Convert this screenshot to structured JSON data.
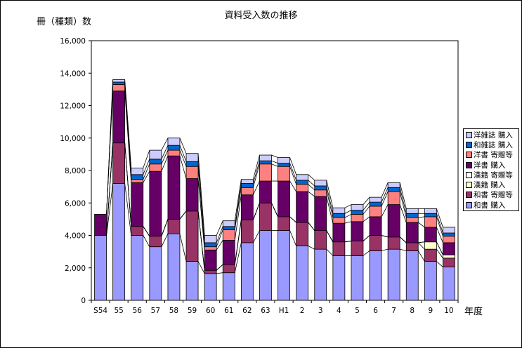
{
  "chart_data": {
    "type": "bar",
    "stacked": true,
    "title": "資料受入数の推移",
    "ylabel": "冊（種類）数",
    "xlabel": "年度",
    "ylim": [
      0,
      16000
    ],
    "yticks": [
      "0",
      "2,000",
      "4,000",
      "6,000",
      "8,000",
      "10,000",
      "12,000",
      "14,000",
      "16,000"
    ],
    "ytick_values": [
      0,
      2000,
      4000,
      6000,
      8000,
      10000,
      12000,
      14000,
      16000
    ],
    "categories": [
      "S54",
      "55",
      "56",
      "57",
      "58",
      "59",
      "60",
      "61",
      "62",
      "63",
      "H1",
      "2",
      "3",
      "4",
      "5",
      "6",
      "7",
      "8",
      "9",
      "10"
    ],
    "series": [
      {
        "name": "和書 購入",
        "color": "#9999ff",
        "values": [
          4000,
          7200,
          4000,
          3300,
          4100,
          2400,
          1650,
          1700,
          3550,
          4300,
          4300,
          3350,
          3150,
          2750,
          2750,
          3050,
          3150,
          3050,
          2400,
          2050
        ]
      },
      {
        "name": "和書 寄贈等",
        "color": "#993366",
        "values": [
          0,
          2500,
          550,
          650,
          900,
          3100,
          200,
          500,
          1400,
          1700,
          850,
          1450,
          1150,
          850,
          900,
          950,
          750,
          500,
          750,
          550
        ]
      },
      {
        "name": "漢籍 購入",
        "color": "#ffffcc",
        "values": [
          0,
          0,
          0,
          0,
          0,
          0,
          0,
          0,
          0,
          0,
          0,
          0,
          0,
          0,
          0,
          0,
          0,
          0,
          450,
          200
        ]
      },
      {
        "name": "漢籍 寄贈等",
        "color": "#ffffff",
        "values": [
          0,
          0,
          0,
          0,
          0,
          0,
          0,
          0,
          0,
          0,
          0,
          0,
          0,
          0,
          0,
          0,
          0,
          0,
          0,
          0
        ]
      },
      {
        "name": "洋書 購入",
        "color": "#660066",
        "values": [
          1300,
          3200,
          2700,
          4000,
          3900,
          2000,
          1250,
          1500,
          1550,
          1350,
          2200,
          1900,
          2100,
          1150,
          1200,
          1150,
          2000,
          1250,
          900,
          750
        ]
      },
      {
        "name": "洋書 寄贈等",
        "color": "#ff8080",
        "values": [
          0,
          400,
          200,
          450,
          350,
          750,
          200,
          650,
          450,
          1050,
          900,
          450,
          400,
          350,
          450,
          650,
          800,
          300,
          650,
          400
        ]
      },
      {
        "name": "和雑誌 購入",
        "color": "#0066cc",
        "values": [
          0,
          150,
          300,
          300,
          300,
          300,
          250,
          200,
          250,
          200,
          200,
          250,
          250,
          250,
          250,
          250,
          250,
          250,
          200,
          200
        ]
      },
      {
        "name": "洋雑誌 購入",
        "color": "#ccccff",
        "values": [
          0,
          150,
          400,
          550,
          450,
          500,
          450,
          350,
          250,
          350,
          350,
          350,
          350,
          350,
          350,
          300,
          300,
          300,
          300,
          350
        ]
      }
    ],
    "legend_position": "right",
    "legend_order": [
      "洋雑誌 購入",
      "和雑誌 購入",
      "洋書 寄贈等",
      "洋書 購入",
      "漢籍 寄贈等",
      "漢籍 購入",
      "和書 寄贈等",
      "和書 購入"
    ],
    "grid": false,
    "series_lines": true
  }
}
